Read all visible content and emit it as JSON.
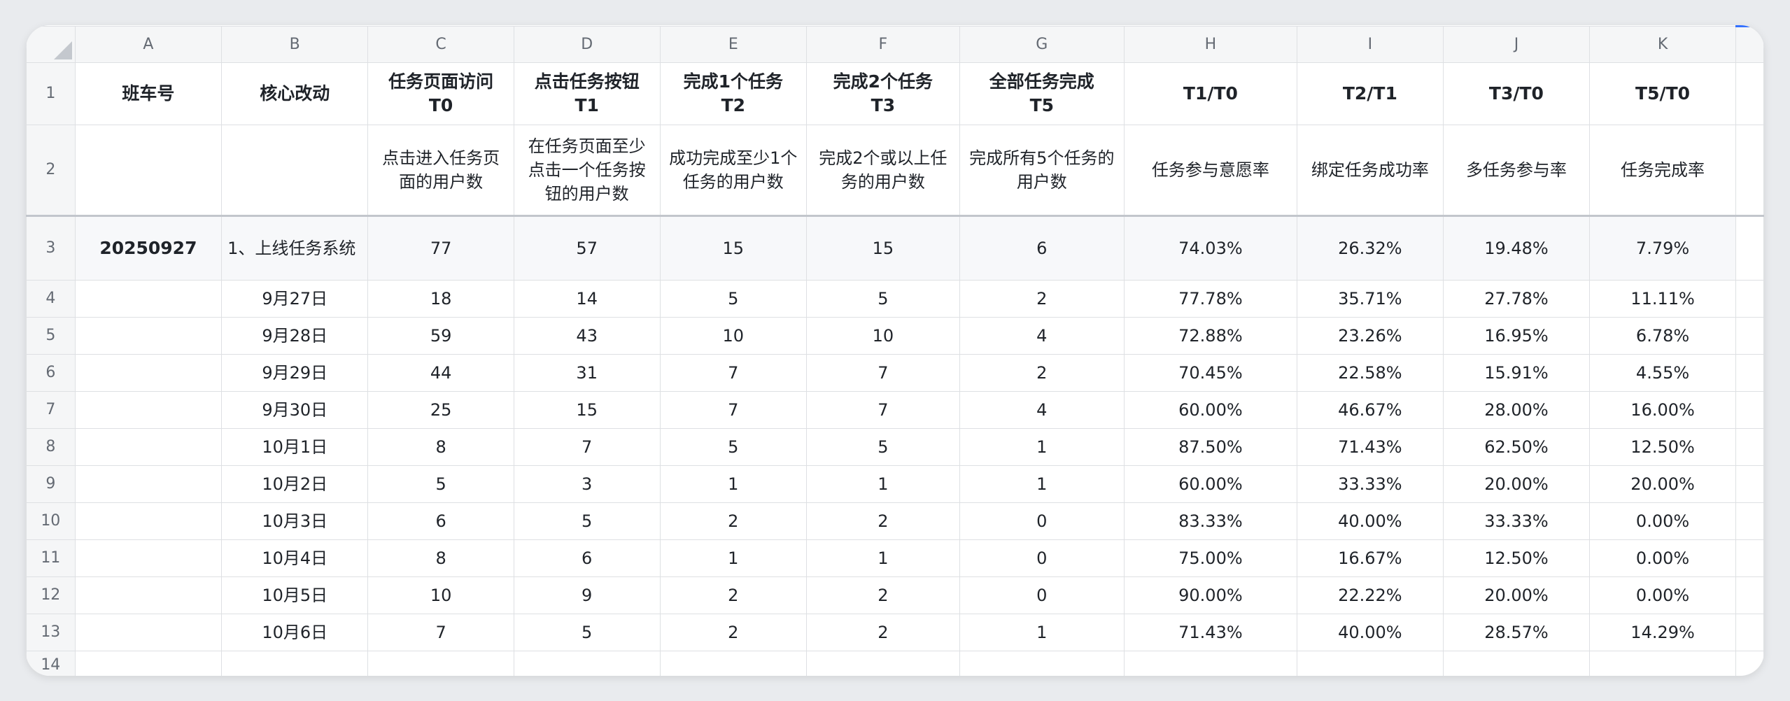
{
  "columns": [
    "A",
    "B",
    "C",
    "D",
    "E",
    "F",
    "G",
    "H",
    "I",
    "J",
    "K"
  ],
  "header_row1": [
    "班车号",
    "核心改动",
    "任务页面访问\nT0",
    "点击任务按钮\nT1",
    "完成1个任务\nT2",
    "完成2个任务\nT3",
    "全部任务完成\nT5",
    "T1/T0",
    "T2/T1",
    "T3/T0",
    "T5/T0"
  ],
  "header_row2": [
    "",
    "",
    "点击进入任务页面的用户数",
    "在任务页面至少点击一个任务按钮的用户数",
    "成功完成至少1个任务的用户数",
    "完成2个或以上任务的用户数",
    "完成所有5个任务的用户数",
    "任务参与意愿率",
    "绑定任务成功率",
    "多任务参与率",
    "任务完成率"
  ],
  "row3": [
    "20250927",
    "1、上线任务系统",
    "77",
    "57",
    "15",
    "15",
    "6",
    "74.03%",
    "26.32%",
    "19.48%",
    "7.79%"
  ],
  "rows": [
    [
      "",
      "9月27日",
      "18",
      "14",
      "5",
      "5",
      "2",
      "77.78%",
      "35.71%",
      "27.78%",
      "11.11%"
    ],
    [
      "",
      "9月28日",
      "59",
      "43",
      "10",
      "10",
      "4",
      "72.88%",
      "23.26%",
      "16.95%",
      "6.78%"
    ],
    [
      "",
      "9月29日",
      "44",
      "31",
      "7",
      "7",
      "2",
      "70.45%",
      "22.58%",
      "15.91%",
      "4.55%"
    ],
    [
      "",
      "9月30日",
      "25",
      "15",
      "7",
      "7",
      "4",
      "60.00%",
      "46.67%",
      "28.00%",
      "16.00%"
    ],
    [
      "",
      "10月1日",
      "8",
      "7",
      "5",
      "5",
      "1",
      "87.50%",
      "71.43%",
      "62.50%",
      "12.50%"
    ],
    [
      "",
      "10月2日",
      "5",
      "3",
      "1",
      "1",
      "1",
      "60.00%",
      "33.33%",
      "20.00%",
      "20.00%"
    ],
    [
      "",
      "10月3日",
      "6",
      "5",
      "2",
      "2",
      "0",
      "83.33%",
      "40.00%",
      "33.33%",
      "0.00%"
    ],
    [
      "",
      "10月4日",
      "8",
      "6",
      "1",
      "1",
      "0",
      "75.00%",
      "16.67%",
      "12.50%",
      "0.00%"
    ],
    [
      "",
      "10月5日",
      "10",
      "9",
      "2",
      "2",
      "0",
      "90.00%",
      "22.22%",
      "20.00%",
      "0.00%"
    ],
    [
      "",
      "10月6日",
      "7",
      "5",
      "2",
      "2",
      "1",
      "71.43%",
      "40.00%",
      "28.57%",
      "14.29%"
    ]
  ],
  "row_numbers": [
    "1",
    "2",
    "3",
    "4",
    "5",
    "6",
    "7",
    "8",
    "9",
    "10",
    "11",
    "12",
    "13",
    "14"
  ],
  "colors": {
    "accent": "#3370ff",
    "grid": "#dee0e3",
    "header_bg": "#f5f6f7"
  }
}
